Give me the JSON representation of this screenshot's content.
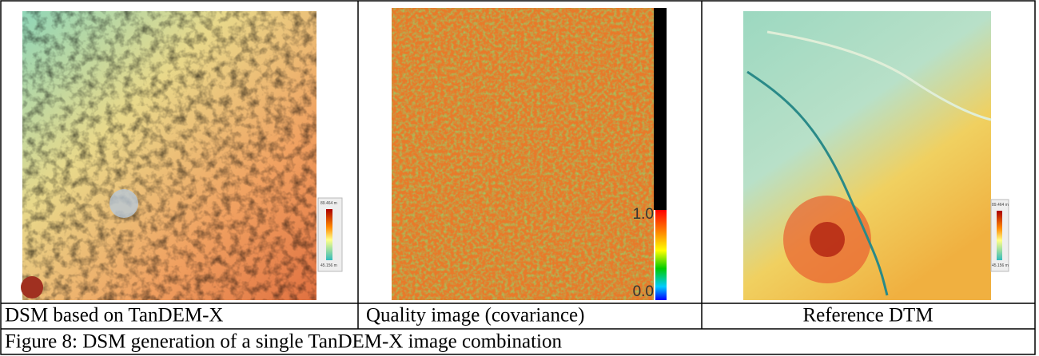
{
  "table": {
    "columns": [
      {
        "caption": "DSM based on TanDEM-X",
        "legend": [
          "89.464 m",
          "45.156 m"
        ]
      },
      {
        "caption": "Quality image (covariance)",
        "scale": [
          "1.0",
          "0.0"
        ]
      },
      {
        "caption": "Reference DTM",
        "legend": [
          "89.464 m",
          "45.156 m"
        ]
      }
    ]
  },
  "figure_caption": "Figure 8: DSM generation of a single TanDEM-X image combination"
}
